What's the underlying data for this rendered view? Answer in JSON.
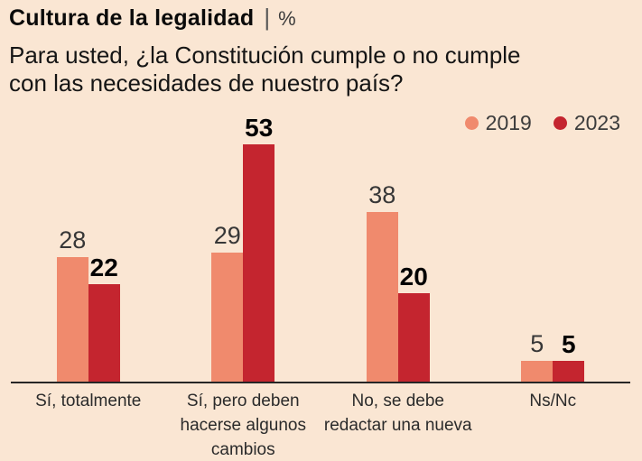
{
  "header": {
    "title": "Cultura de la legalidad",
    "separator": "|",
    "unit": "%",
    "subtitle": "Para usted, ¿la Constitución cumple o no cumple con las necesidades de nuestro país?",
    "subtitle_lines": [
      "Para usted, ¿la Constitución cumple o no cumple",
      "con las necesidades de nuestro país?"
    ]
  },
  "legend": {
    "items": [
      {
        "label": "2019",
        "color": "#f08a6d"
      },
      {
        "label": "2023",
        "color": "#c4252f"
      }
    ]
  },
  "colors": {
    "background": "#fae6d3",
    "series_2019": "#f08a6d",
    "series_2023": "#c4252f",
    "axis_line": "#262626",
    "title_text": "#0a0a0a",
    "value_label_regular": "#373737",
    "value_label_bold": "#030303"
  },
  "chart_data": {
    "type": "bar",
    "title": "Cultura de la legalidad",
    "unit": "%",
    "question": "Para usted, ¿la Constitución cumple o no cumple con las necesidades de nuestro país?",
    "categories": [
      "Sí, totalmente",
      "Sí, pero deben hacerse algunos cambios",
      "No, se debe redactar una nueva",
      "Ns/Nc"
    ],
    "categories_lines": [
      [
        "Sí, totalmente"
      ],
      [
        "Sí, pero deben",
        "hacerse algunos",
        "cambios"
      ],
      [
        "No, se debe",
        "redactar una nueva"
      ],
      [
        "Ns/Nc"
      ]
    ],
    "series": [
      {
        "name": "2019",
        "color": "#f08a6d",
        "values": [
          28,
          29,
          38,
          5
        ],
        "value_label_bold": false
      },
      {
        "name": "2023",
        "color": "#c4252f",
        "values": [
          22,
          53,
          20,
          5
        ],
        "value_label_bold": true
      }
    ],
    "ylim": [
      0,
      53
    ],
    "grid": false,
    "value_labels": true,
    "legend_position": "top-right"
  }
}
